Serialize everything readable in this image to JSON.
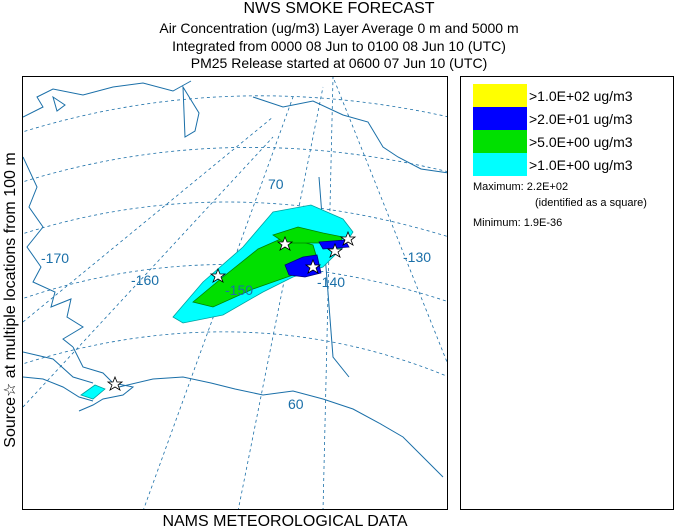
{
  "title": {
    "main": "NWS SMOKE FORECAST",
    "line1": "Air Concentration (ug/m3) Layer Average    0 m and  5000 m",
    "line2": "Integrated from 0000 08 Jun to 0100 08 Jun 10 (UTC)",
    "line3": "PM25 Release started at 0600 07 Jun 10 (UTC)"
  },
  "side_label": "Source☆   at multiple locations   from   100 m",
  "footer": "NAMS METEOROLOGICAL DATA",
  "map": {
    "grid_labels": [
      "70",
      "-170",
      "-160",
      "-150",
      "-140",
      "-130",
      "60"
    ],
    "colors": {
      "coast": "#1a6fa8",
      "grid": "#1a6fa8",
      "border": "#1a6fa8"
    }
  },
  "legend": {
    "items": [
      {
        "label": ">1.0E+02 ug/m3",
        "color": "#ffff00"
      },
      {
        "label": ">2.0E+01 ug/m3",
        "color": "#0000ff"
      },
      {
        "label": ">5.0E+00 ug/m3",
        "color": "#00e000"
      },
      {
        "label": ">1.0E+00 ug/m3",
        "color": "#00ffff"
      }
    ],
    "maximum_label": "Maximum:",
    "maximum_value": "2.2E+02",
    "maximum_note": "(identified as a square)",
    "minimum_label": "Minimum:",
    "minimum_value": "1.9E-36"
  }
}
